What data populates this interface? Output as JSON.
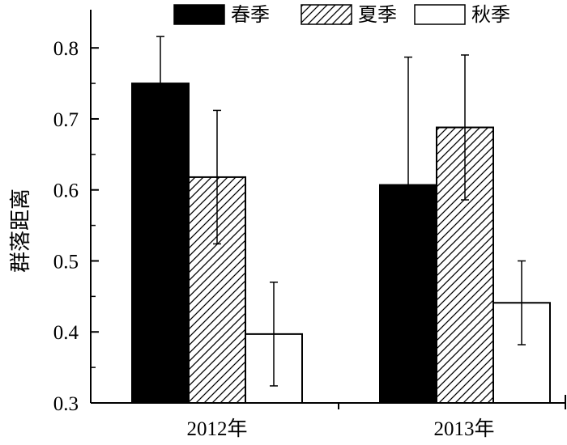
{
  "chart_data": {
    "type": "bar",
    "title": "",
    "xlabel": "",
    "ylabel": "群落距离",
    "categories": [
      "2012年",
      "2013年"
    ],
    "ylim": [
      0.3,
      0.85
    ],
    "yticks": [
      "0.3",
      "0.4",
      "0.5",
      "0.6",
      "0.7",
      "0.8"
    ],
    "grid": false,
    "legend_position": "top-right",
    "series": [
      {
        "name": "春季",
        "fill": "solid",
        "color": "#000000",
        "values": [
          0.75,
          0.607
        ],
        "errors": [
          0.066,
          0.18
        ]
      },
      {
        "name": "夏季",
        "fill": "hatched",
        "color": "#000000",
        "values": [
          0.618,
          0.688
        ],
        "errors": [
          0.094,
          0.102
        ]
      },
      {
        "name": "秋季",
        "fill": "empty",
        "color": "#ffffff",
        "values": [
          0.397,
          0.441
        ],
        "errors": [
          0.073,
          0.059
        ]
      }
    ]
  }
}
